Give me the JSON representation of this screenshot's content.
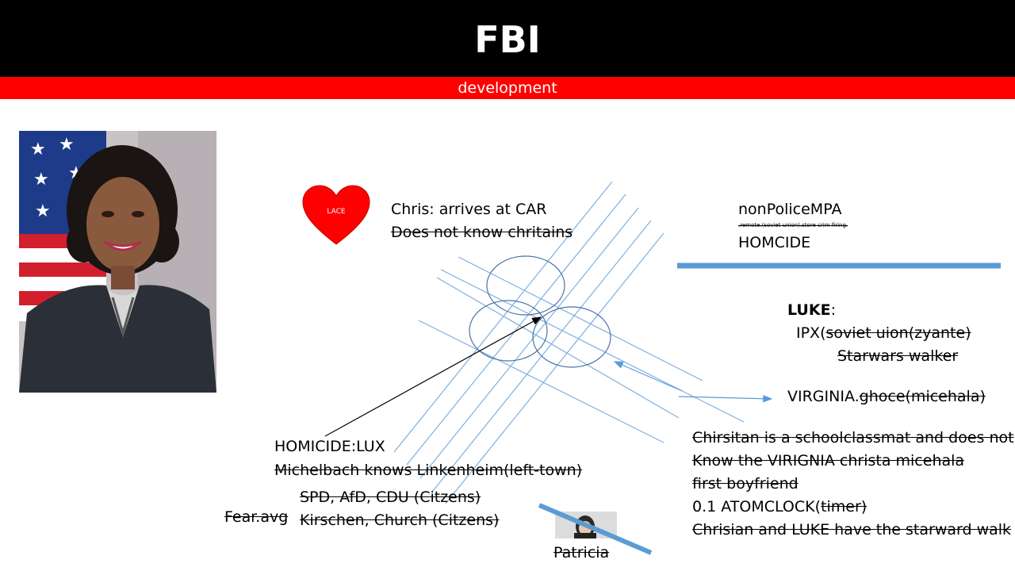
{
  "header": {
    "title": "FBI",
    "subtitle": "development"
  },
  "colors": {
    "header_bg": "#000000",
    "subbar_bg": "#ff0000",
    "heart": "#ff0000",
    "accent_blue": "#5b9bd5"
  },
  "heart": {
    "label": "LACE"
  },
  "notes": {
    "chris_line1": "Chris: arrives at CAR",
    "chris_line2": "Does not know chritains",
    "mpa_title": "nonPoliceMPA",
    "mpa_tiny": ".remote.(soviet union).store crim firing.",
    "mpa_homicide": "HOMCIDE",
    "luke_label": "LUKE",
    "luke_colon": ":",
    "ipx_prefix": "IPX(",
    "ipx_strike": "soviet uion(zyante)",
    "starwars": "Starwars walker",
    "virginia_prefix": "VIRGINIA.",
    "virginia_strike": "ghoce(micehala)",
    "homicide_lux": "HOMICIDE:LUX",
    "michelbach": "Michelbach knows Linkenheim(left-town)",
    "spd": "SPD, AfD, CDU (Citzens)",
    "kirschen": "Kirschen, Church (Citzens)",
    "fear": "Fear.avg",
    "patricia": "Patricia",
    "right1": "Chirsitan is a schoolclassmat and does not",
    "right2": "Know the VIRIGNIA christa micehala",
    "right3": "first boyfriend",
    "atom_prefix": "0.1 ATOMCLOCK(",
    "atom_strike": "timer)",
    "right5": "Chrisian and LUKE  have the starward walk"
  }
}
